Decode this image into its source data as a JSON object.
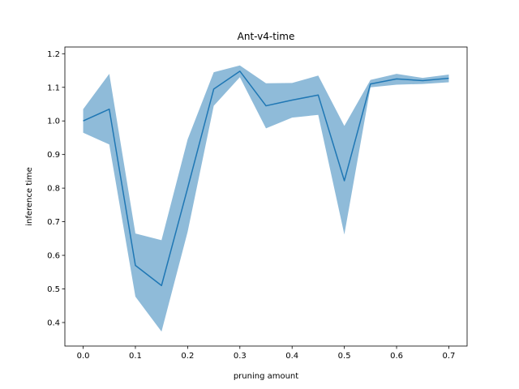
{
  "chart_data": {
    "type": "line",
    "title": "Ant-v4-time",
    "xlabel": "pruning amount",
    "ylabel": "inference time",
    "xlim": [
      -0.035,
      0.735
    ],
    "ylim": [
      0.33,
      1.22
    ],
    "xticks": [
      0.0,
      0.1,
      0.2,
      0.3,
      0.4,
      0.5,
      0.6,
      0.7
    ],
    "xtick_labels": [
      "0.0",
      "0.1",
      "0.2",
      "0.3",
      "0.4",
      "0.5",
      "0.6",
      "0.7"
    ],
    "yticks": [
      0.4,
      0.5,
      0.6,
      0.7,
      0.8,
      0.9,
      1.0,
      1.1,
      1.2
    ],
    "ytick_labels": [
      "0.4",
      "0.5",
      "0.6",
      "0.7",
      "0.8",
      "0.9",
      "1.0",
      "1.1",
      "1.2"
    ],
    "grid": false,
    "colors": {
      "line": "#1f77b4",
      "band": "#1f77b4"
    },
    "series": [
      {
        "x": [
          0.0,
          0.05,
          0.1,
          0.15,
          0.2,
          0.25,
          0.3,
          0.35,
          0.4,
          0.45,
          0.5,
          0.55,
          0.6,
          0.65,
          0.7
        ],
        "values": [
          1.0,
          1.035,
          0.57,
          0.51,
          0.8,
          1.095,
          1.148,
          1.045,
          1.062,
          1.077,
          0.822,
          1.11,
          1.125,
          1.12,
          1.127
        ],
        "lower": [
          0.965,
          0.93,
          0.477,
          0.373,
          0.67,
          1.045,
          1.13,
          0.978,
          1.01,
          1.018,
          0.662,
          1.1,
          1.108,
          1.11,
          1.115
        ],
        "upper": [
          1.035,
          1.14,
          0.665,
          0.645,
          0.945,
          1.145,
          1.165,
          1.112,
          1.113,
          1.135,
          0.985,
          1.122,
          1.14,
          1.128,
          1.138
        ]
      }
    ]
  }
}
